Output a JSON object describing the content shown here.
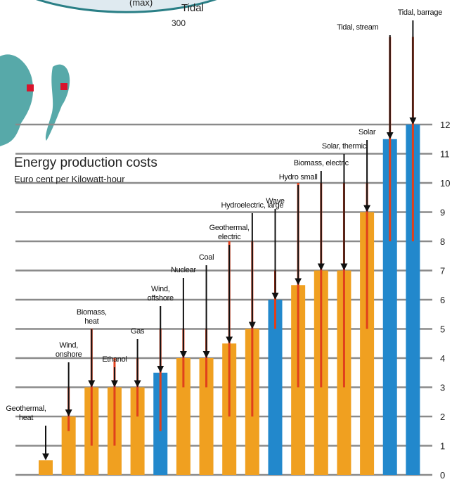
{
  "chart_data": {
    "type": "bar",
    "title": "Energy production costs",
    "subtitle": "Euro cent per Kilowatt-hour",
    "annotations": [
      "(max)",
      "Tidal",
      "300"
    ],
    "categories": [
      "Geothermal, heat",
      "Wind, onshore",
      "Biomass, heat",
      "Ethanol",
      "Gas",
      "Wind, offshore",
      "Nuclear",
      "Coal",
      "Geothermal, electric",
      "Hydroelectric, large",
      "Wave",
      "Hydro small",
      "Biomass, electric",
      "Solar, thermic",
      "Solar",
      "Tidal, stream",
      "Tidal, barrage"
    ],
    "values": [
      0.5,
      2,
      3,
      3,
      3,
      3.5,
      4,
      4,
      4.5,
      5,
      6,
      6.5,
      7,
      7,
      9,
      11.5,
      12
    ],
    "low": [
      null,
      1.5,
      1,
      1,
      2,
      1.5,
      3,
      3,
      2,
      2,
      5,
      3,
      3,
      3,
      5,
      8,
      8
    ],
    "high": [
      null,
      3,
      5,
      4,
      4,
      5,
      5,
      5,
      8,
      8,
      7,
      10,
      10,
      10,
      10,
      15,
      15
    ],
    "colors": [
      "#f0a020",
      "#f0a020",
      "#f0a020",
      "#f0a020",
      "#f0a020",
      "#2288cc",
      "#f0a020",
      "#f0a020",
      "#f0a020",
      "#f0a020",
      "#2288cc",
      "#f0a020",
      "#f0a020",
      "#f0a020",
      "#f0a020",
      "#2288cc",
      "#2288cc"
    ],
    "range_color": "#e0401c",
    "ylim": [
      0,
      16
    ],
    "yticks": [
      0,
      1,
      2,
      3,
      4,
      5,
      6,
      7,
      8,
      9,
      10,
      11,
      12
    ],
    "grid": true
  }
}
